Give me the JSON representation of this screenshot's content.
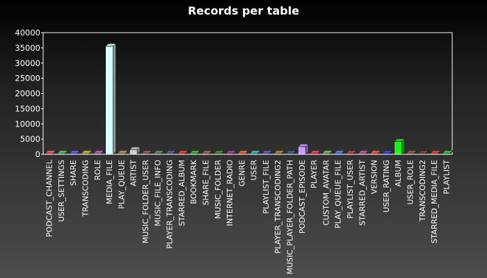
{
  "chart_data": {
    "type": "bar",
    "title": "Records per table",
    "xlabel": "",
    "ylabel": "",
    "ylim": [
      0,
      40000
    ],
    "yticks": [
      0,
      5000,
      10000,
      15000,
      20000,
      25000,
      30000,
      35000,
      40000
    ],
    "grid": false,
    "legend": "none",
    "categories": [
      "PODCAST_CHANNEL",
      "USER_SETTINGS",
      "SHARE",
      "TRANSCODING",
      "ROLE",
      "MEDIA_FILE",
      "PLAY_QUEUE",
      "ARTIST",
      "MUSIC_FOLDER_USER",
      "MUSIC_FILE_INFO",
      "PLAYER_TRANSCODING",
      "STARRED_ALBUM",
      "BOOKMARK",
      "SHARE_FILE",
      "MUSIC_FOLDER",
      "INTERNET_RADIO",
      "GENRE",
      "USER",
      "PLAYLIST_FILE",
      "PLAYER_TRANSCODING2",
      "MUSIC_PLAYER_FOLDER_PATH",
      "PODCAST_EPISODE",
      "PLAYER",
      "CUSTOM_AVATAR",
      "PLAY_QUEUE_FILE",
      "PLAYLIST_USER",
      "STARRED_ARTIST",
      "VERSION",
      "USER_RATING",
      "ALBUM",
      "USER_ROLE",
      "TRANSCODING2",
      "STARRED_MEDIA_FILE",
      "PLAYLIST"
    ],
    "values": [
      0,
      0,
      0,
      0,
      0,
      35500,
      0,
      1500,
      0,
      0,
      0,
      0,
      0,
      0,
      0,
      0,
      0,
      0,
      0,
      0,
      0,
      2500,
      0,
      0,
      0,
      0,
      0,
      0,
      0,
      4200,
      0,
      0,
      0,
      0
    ],
    "colors": [
      "#ff6f6f",
      "#6fcf6f",
      "#6f6fff",
      "#cfcf4f",
      "#cf6fcf",
      "#d8ffff",
      "#cf9f6f",
      "#d0d0d0",
      "#9f6f6f",
      "#6f9f6f",
      "#6f6f9f",
      "#ff4f4f",
      "#4fcf4f",
      "#af6f6f",
      "#4f9f4f",
      "#af4faf",
      "#ff7f4f",
      "#4fcfcf",
      "#6f6fcf",
      "#cf8f4f",
      "#4f6f9f",
      "#c89fff",
      "#ff4f6f",
      "#8fcf6f",
      "#6f8fff",
      "#cf4f4f",
      "#cf6f9f",
      "#ff6f4f",
      "#4f4fff",
      "#22ee22",
      "#9f6f4f",
      "#8f4f4f",
      "#ff4f4f",
      "#4fcf4f"
    ]
  }
}
